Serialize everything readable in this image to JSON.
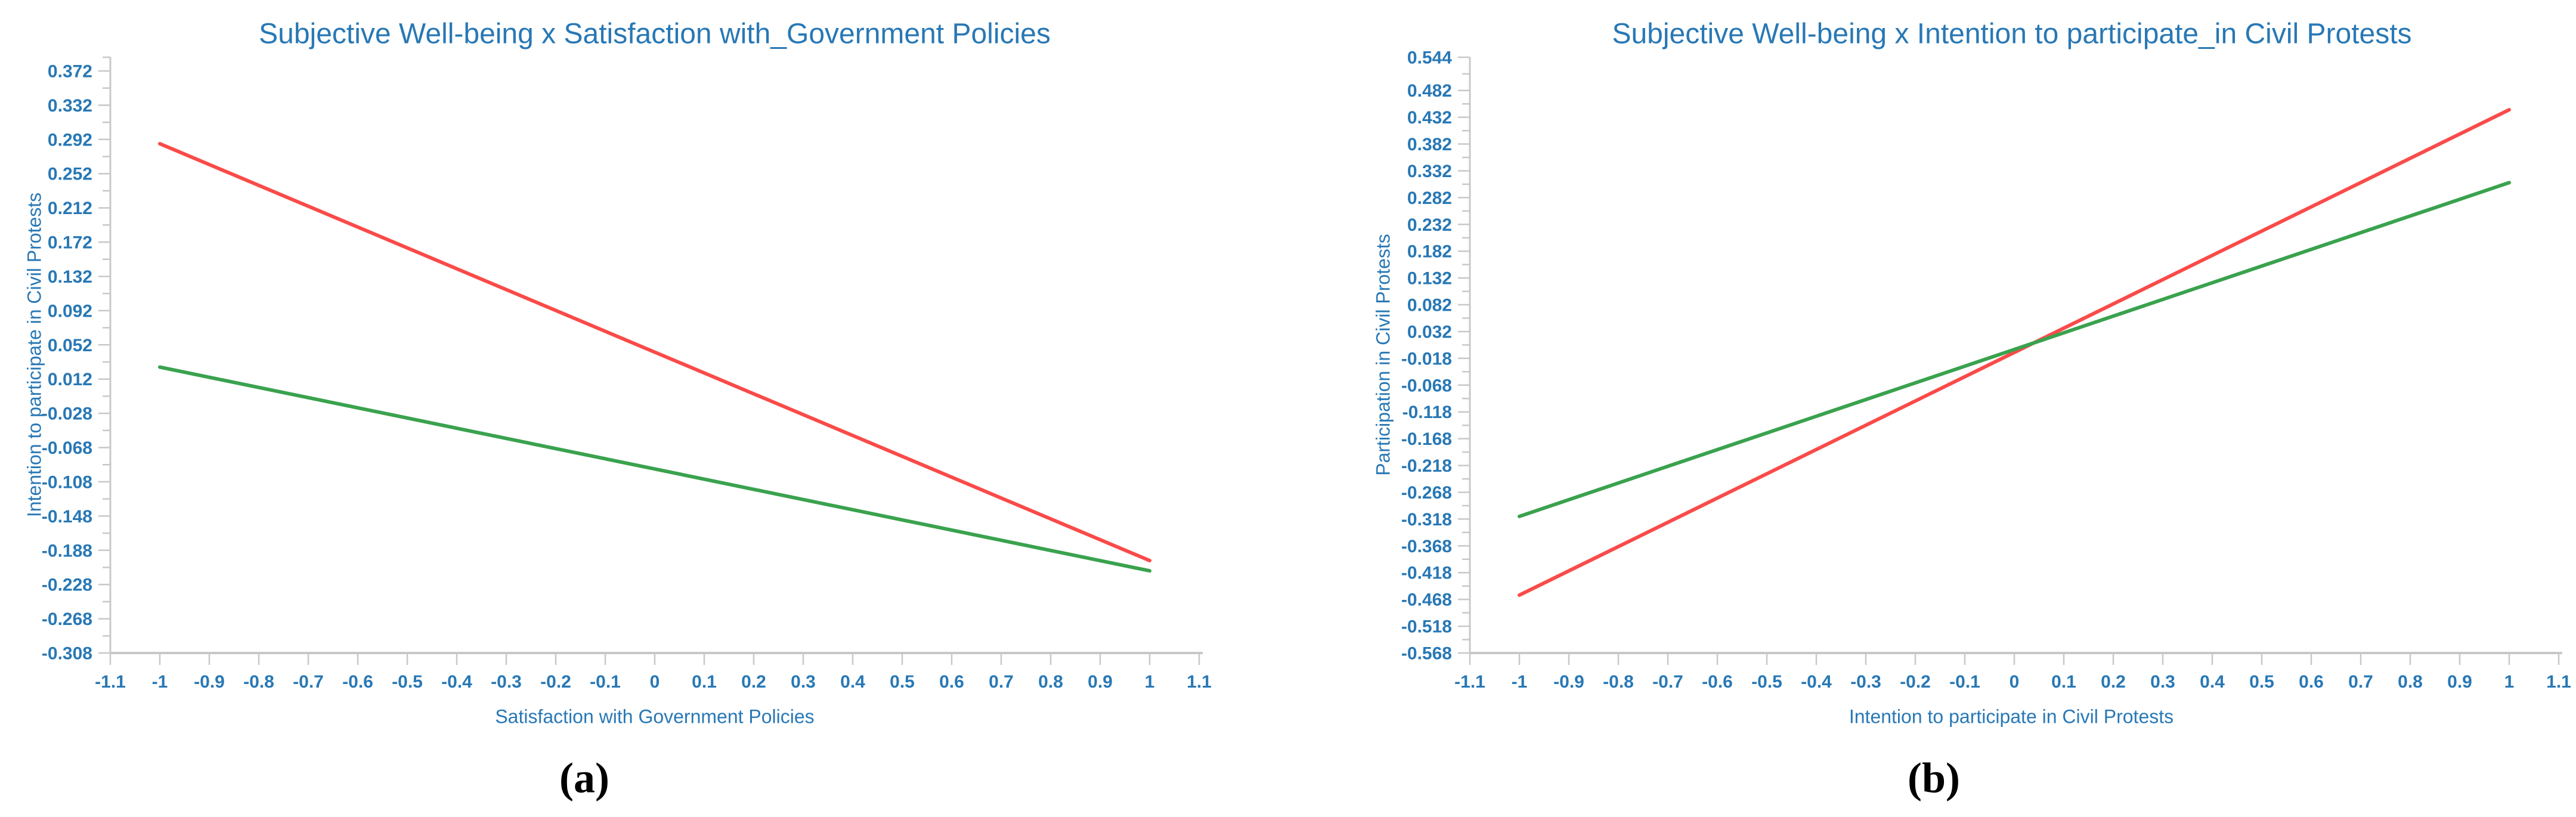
{
  "figure": {
    "captions": [
      "(a)",
      "(b)"
    ],
    "background": "#ffffff",
    "text_color": "#2878b5",
    "axis_color": "#c8c8c8"
  },
  "chart_data": [
    {
      "type": "line",
      "title": "Subjective Well-being x Satisfaction with_Government Policies",
      "xlabel": "Satisfaction with Government Policies",
      "ylabel": "Intention to participate in Civil Protests",
      "xlim": [
        -1.1,
        1.1
      ],
      "ylim": [
        -0.308,
        0.388
      ],
      "grid": false,
      "legend": "none",
      "x_tick_labels": [
        "-1.1",
        "-1",
        "-0.9",
        "-0.8",
        "-0.7",
        "-0.6",
        "-0.5",
        "-0.4",
        "-0.3",
        "-0.2",
        "-0.1",
        "0",
        "0.1",
        "0.2",
        "0.3",
        "0.4",
        "0.5",
        "0.6",
        "0.7",
        "0.8",
        "0.9",
        "1",
        "1.1"
      ],
      "y_tick_labels": [
        "0.372",
        "0.332",
        "0.292",
        "0.252",
        "0.212",
        "0.172",
        "0.132",
        "0.092",
        "0.052",
        "0.012",
        "-0.028",
        "-0.068",
        "-0.108",
        "-0.148",
        "-0.188",
        "-0.228",
        "-0.268",
        "-0.308"
      ],
      "series": [
        {
          "name": "red-line",
          "color": "#fa4b49",
          "x": [
            -1,
            1
          ],
          "y": [
            0.287,
            -0.2
          ]
        },
        {
          "name": "green-line",
          "color": "#3aa24e",
          "x": [
            -1,
            1
          ],
          "y": [
            0.026,
            -0.212
          ]
        }
      ]
    },
    {
      "type": "line",
      "title": "Subjective Well-being x Intention to participate_in Civil Protests",
      "xlabel": "Intention to participate in Civil Protests",
      "ylabel": "Participation in Civil Protests",
      "xlim": [
        -1.1,
        1.1
      ],
      "ylim": [
        -0.568,
        0.544
      ],
      "grid": false,
      "legend": "none",
      "x_tick_labels": [
        "-1.1",
        "-1",
        "-0.9",
        "-0.8",
        "-0.7",
        "-0.6",
        "-0.5",
        "-0.4",
        "-0.3",
        "-0.2",
        "-0.1",
        "0",
        "0.1",
        "0.2",
        "0.3",
        "0.4",
        "0.5",
        "0.6",
        "0.7",
        "0.8",
        "0.9",
        "1",
        "1.1"
      ],
      "y_tick_labels": [
        "0.544",
        "0.482",
        "0.432",
        "0.382",
        "0.332",
        "0.282",
        "0.232",
        "0.182",
        "0.132",
        "0.082",
        "0.032",
        "-0.018",
        "-0.068",
        "-0.118",
        "-0.168",
        "-0.218",
        "-0.268",
        "-0.318",
        "-0.368",
        "-0.418",
        "-0.468",
        "-0.518",
        "-0.568"
      ],
      "series": [
        {
          "name": "red-line",
          "color": "#fa4b49",
          "x": [
            -1,
            1
          ],
          "y": [
            -0.46,
            0.446
          ]
        },
        {
          "name": "green-line",
          "color": "#3aa24e",
          "x": [
            -1,
            1
          ],
          "y": [
            -0.313,
            0.31
          ]
        }
      ]
    }
  ]
}
